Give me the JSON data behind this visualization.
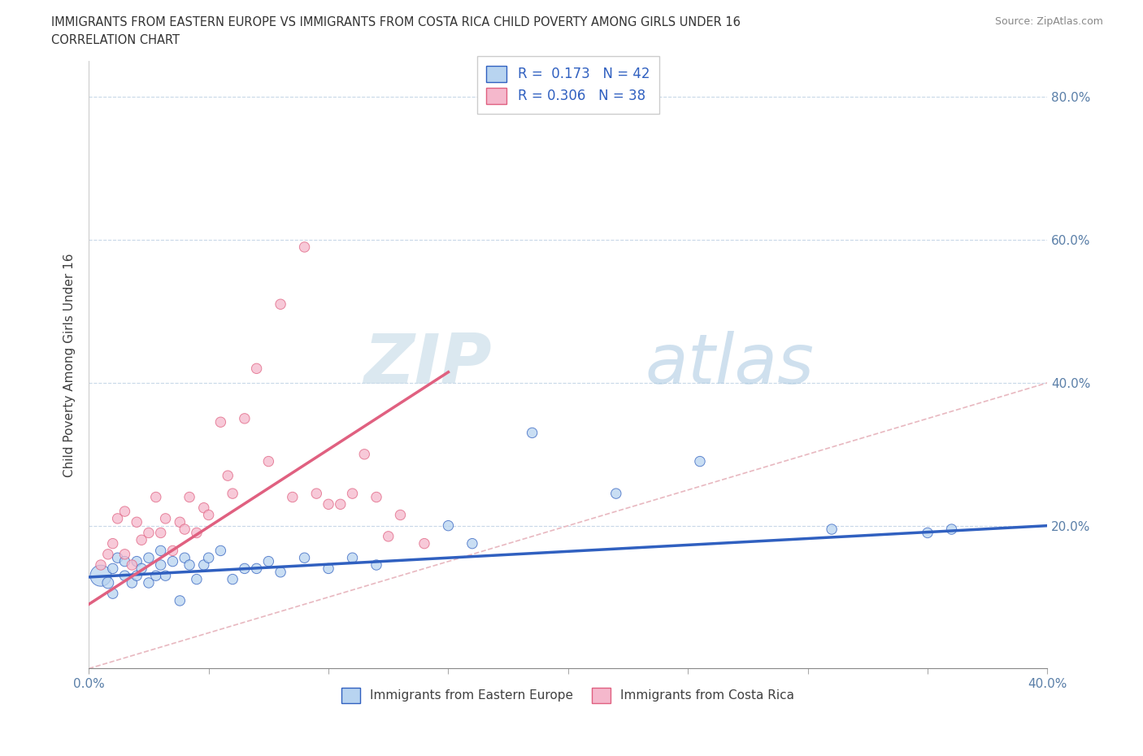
{
  "title_line1": "IMMIGRANTS FROM EASTERN EUROPE VS IMMIGRANTS FROM COSTA RICA CHILD POVERTY AMONG GIRLS UNDER 16",
  "title_line2": "CORRELATION CHART",
  "source": "Source: ZipAtlas.com",
  "ylabel": "Child Poverty Among Girls Under 16",
  "xlim": [
    0.0,
    0.4
  ],
  "ylim": [
    0.0,
    0.85
  ],
  "xticks": [
    0.0,
    0.05,
    0.1,
    0.15,
    0.2,
    0.25,
    0.3,
    0.35,
    0.4
  ],
  "xticklabels": [
    "0.0%",
    "",
    "",
    "",
    "",
    "",
    "",
    "",
    "40.0%"
  ],
  "yticks": [
    0.0,
    0.1,
    0.2,
    0.3,
    0.4,
    0.5,
    0.6,
    0.7,
    0.8
  ],
  "yticklabels": [
    "",
    "",
    "20.0%",
    "",
    "40.0%",
    "",
    "60.0%",
    "",
    "80.0%"
  ],
  "r_eastern": 0.173,
  "n_eastern": 42,
  "r_costa_rica": 0.306,
  "n_costa_rica": 38,
  "color_eastern": "#b8d4f0",
  "color_costa_rica": "#f5b8cc",
  "line_color_eastern": "#3060c0",
  "line_color_costa_rica": "#e06080",
  "diagonal_color": "#e8b8c0",
  "watermark_zip": "ZIP",
  "watermark_atlas": "atlas",
  "legend_label_eastern": "Immigrants from Eastern Europe",
  "legend_label_costa_rica": "Immigrants from Costa Rica",
  "eastern_x": [
    0.005,
    0.008,
    0.01,
    0.01,
    0.012,
    0.015,
    0.015,
    0.018,
    0.02,
    0.02,
    0.022,
    0.025,
    0.025,
    0.028,
    0.03,
    0.03,
    0.032,
    0.035,
    0.038,
    0.04,
    0.042,
    0.045,
    0.048,
    0.05,
    0.055,
    0.06,
    0.065,
    0.07,
    0.075,
    0.08,
    0.09,
    0.1,
    0.11,
    0.12,
    0.15,
    0.16,
    0.185,
    0.22,
    0.255,
    0.31,
    0.35,
    0.36
  ],
  "eastern_y": [
    0.13,
    0.12,
    0.105,
    0.14,
    0.155,
    0.13,
    0.15,
    0.12,
    0.13,
    0.15,
    0.14,
    0.12,
    0.155,
    0.13,
    0.145,
    0.165,
    0.13,
    0.15,
    0.095,
    0.155,
    0.145,
    0.125,
    0.145,
    0.155,
    0.165,
    0.125,
    0.14,
    0.14,
    0.15,
    0.135,
    0.155,
    0.14,
    0.155,
    0.145,
    0.2,
    0.175,
    0.33,
    0.245,
    0.29,
    0.195,
    0.19,
    0.195
  ],
  "eastern_size": [
    350,
    100,
    80,
    80,
    80,
    80,
    80,
    80,
    80,
    80,
    80,
    80,
    80,
    80,
    80,
    80,
    80,
    80,
    80,
    80,
    80,
    80,
    80,
    80,
    80,
    80,
    80,
    80,
    80,
    80,
    80,
    80,
    80,
    80,
    80,
    80,
    80,
    80,
    80,
    80,
    80,
    80
  ],
  "costa_rica_x": [
    0.005,
    0.008,
    0.01,
    0.012,
    0.015,
    0.015,
    0.018,
    0.02,
    0.022,
    0.025,
    0.028,
    0.03,
    0.032,
    0.035,
    0.038,
    0.04,
    0.042,
    0.045,
    0.048,
    0.05,
    0.055,
    0.058,
    0.06,
    0.065,
    0.07,
    0.075,
    0.08,
    0.085,
    0.09,
    0.095,
    0.1,
    0.105,
    0.11,
    0.115,
    0.12,
    0.125,
    0.13,
    0.14
  ],
  "costa_rica_y": [
    0.145,
    0.16,
    0.175,
    0.21,
    0.16,
    0.22,
    0.145,
    0.205,
    0.18,
    0.19,
    0.24,
    0.19,
    0.21,
    0.165,
    0.205,
    0.195,
    0.24,
    0.19,
    0.225,
    0.215,
    0.345,
    0.27,
    0.245,
    0.35,
    0.42,
    0.29,
    0.51,
    0.24,
    0.59,
    0.245,
    0.23,
    0.23,
    0.245,
    0.3,
    0.24,
    0.185,
    0.215,
    0.175
  ],
  "costa_rica_size": [
    80,
    80,
    80,
    80,
    80,
    80,
    80,
    80,
    80,
    80,
    80,
    80,
    80,
    80,
    80,
    80,
    80,
    80,
    80,
    80,
    80,
    80,
    80,
    80,
    80,
    80,
    80,
    80,
    80,
    80,
    80,
    80,
    80,
    80,
    80,
    80,
    80,
    80
  ],
  "line_eastern_x0": 0.0,
  "line_eastern_y0": 0.128,
  "line_eastern_x1": 0.4,
  "line_eastern_y1": 0.2,
  "line_cr_x0": 0.0,
  "line_cr_y0": 0.09,
  "line_cr_x1": 0.15,
  "line_cr_y1": 0.415
}
